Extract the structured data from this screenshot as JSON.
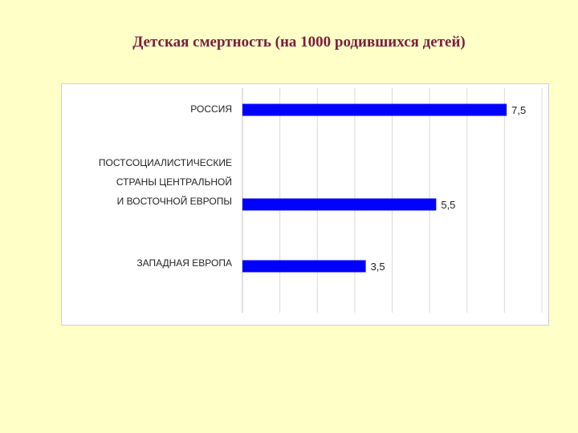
{
  "title": "Детская смертность (на 1000 родившихся детей)",
  "colors": {
    "background": "#ffffc8",
    "title": "#7a1f3d",
    "bar": "#0000ff",
    "grid": "#d9d9d9"
  },
  "chart_data": {
    "type": "bar",
    "orientation": "horizontal",
    "title": "",
    "xlabel": "",
    "ylabel": "",
    "xlim": [
      0,
      8.5
    ],
    "grid": true,
    "legend": "none",
    "categories": [
      "РОССИЯ",
      "ПОСТСОЦИАЛИСТИЧЕСКИЕ СТРАНЫ ЦЕНТРАЛЬНОЙ И ВОСТОЧНОЙ ЕВРОПЫ",
      "ЗАПАДНАЯ ЕВРОПА"
    ],
    "category_lines": [
      [
        "РОССИЯ"
      ],
      [
        "ПОСТСОЦИАЛИСТИЧЕСКИЕ",
        "СТРАНЫ ЦЕНТРАЛЬНОЙ",
        "И ВОСТОЧНОЙ ЕВРОПЫ"
      ],
      [
        "ЗАПАДНАЯ ЕВРОПА"
      ]
    ],
    "values": [
      7.5,
      5.5,
      3.5
    ],
    "data_labels": [
      "7,5",
      "5,5",
      "3,5"
    ]
  }
}
